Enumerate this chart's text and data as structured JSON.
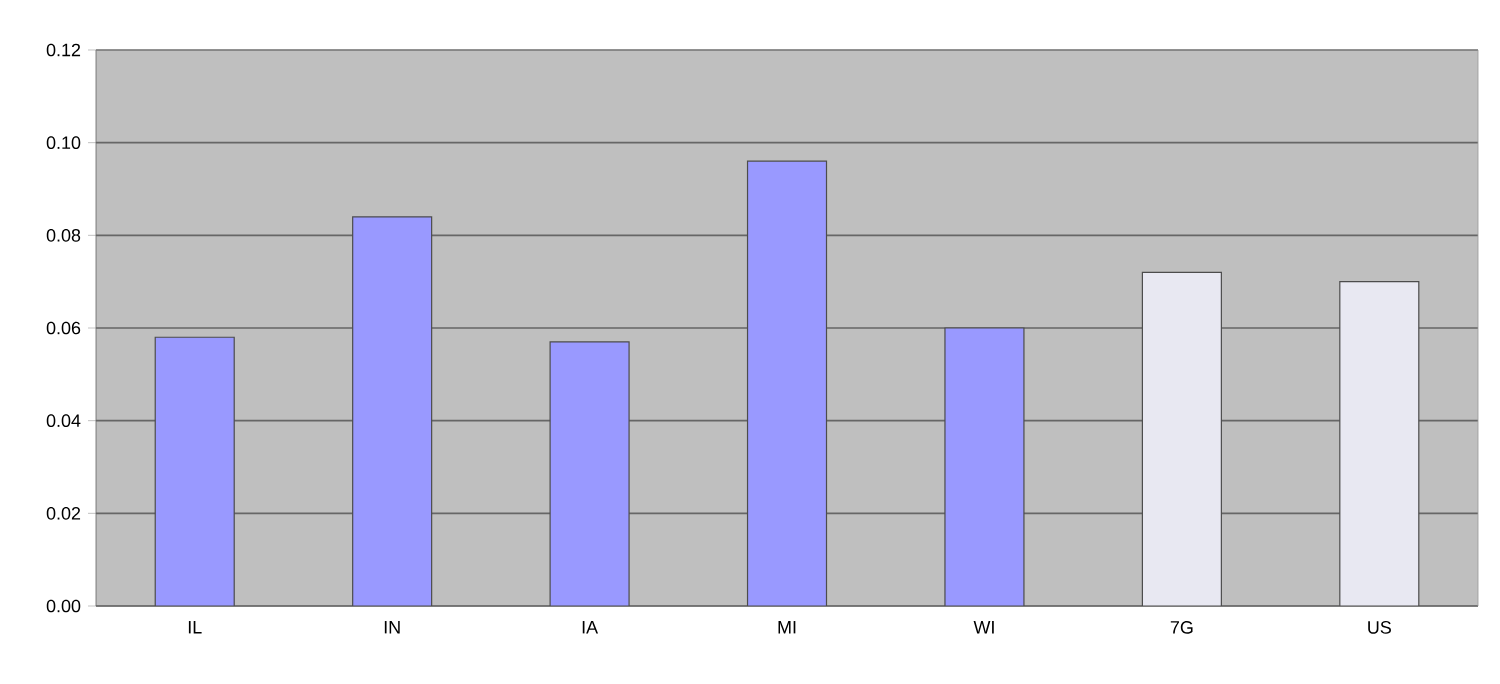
{
  "chart_data": {
    "type": "bar",
    "categories": [
      "IL",
      "IN",
      "IA",
      "MI",
      "WI",
      "7G",
      "US"
    ],
    "values": [
      0.058,
      0.084,
      0.057,
      0.096,
      0.06,
      0.072,
      0.07
    ],
    "colors": [
      "#9999ff",
      "#9999ff",
      "#9999ff",
      "#9999ff",
      "#9999ff",
      "#e8e8f2",
      "#e8e8f2"
    ],
    "ylim": [
      0,
      0.12
    ],
    "yticks": [
      {
        "value": 0,
        "label": "0.00"
      },
      {
        "value": 0.02,
        "label": "0.02"
      },
      {
        "value": 0.04,
        "label": "0.04"
      },
      {
        "value": 0.06,
        "label": "0.06"
      },
      {
        "value": 0.08,
        "label": "0.08"
      },
      {
        "value": 0.1,
        "label": "0.10"
      },
      {
        "value": 0.12,
        "label": "0.12"
      }
    ],
    "grid": "y"
  }
}
